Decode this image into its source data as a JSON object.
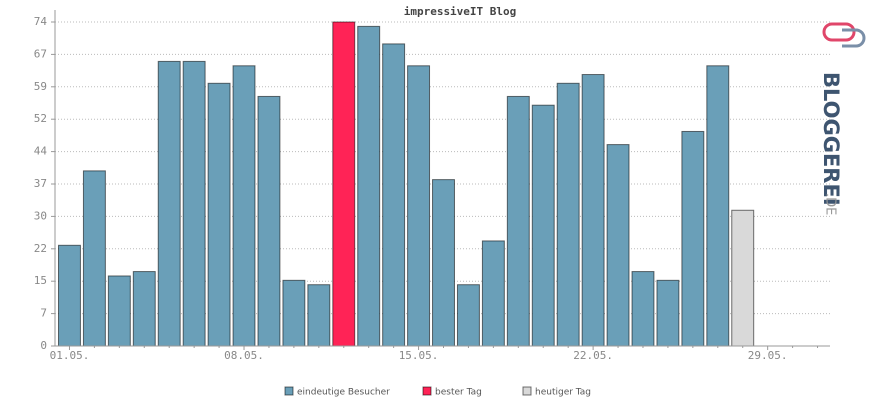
{
  "chart_data": {
    "type": "bar",
    "title": "impressiveIT Blog",
    "categories": [
      "01.05.",
      null,
      null,
      null,
      null,
      null,
      null,
      "08.05.",
      null,
      null,
      null,
      null,
      null,
      null,
      "15.05.",
      null,
      null,
      null,
      null,
      null,
      null,
      "22.05.",
      null,
      null,
      null,
      null,
      null,
      null,
      "29.05.",
      null,
      null
    ],
    "series": [
      {
        "name": "eindeutige Besucher",
        "color": "#6a9fb8",
        "values": [
          23,
          40,
          16,
          17,
          65,
          65,
          60,
          64,
          57,
          15,
          14,
          null,
          73,
          69,
          64,
          38,
          14,
          24,
          57,
          55,
          60,
          62,
          46,
          17,
          15,
          49,
          64,
          null,
          null,
          null,
          null
        ]
      },
      {
        "name": "bester Tag",
        "color": "#ff2356",
        "values": [
          null,
          null,
          null,
          null,
          null,
          null,
          null,
          null,
          null,
          null,
          null,
          74,
          null,
          null,
          null,
          null,
          null,
          null,
          null,
          null,
          null,
          null,
          null,
          null,
          null,
          null,
          null,
          null,
          null,
          null,
          null
        ]
      },
      {
        "name": "heutiger Tag",
        "color": "#d9d9d9",
        "values": [
          null,
          null,
          null,
          null,
          null,
          null,
          null,
          null,
          null,
          null,
          null,
          null,
          null,
          null,
          null,
          null,
          null,
          null,
          null,
          null,
          null,
          null,
          null,
          null,
          null,
          null,
          null,
          31,
          null,
          null,
          null
        ]
      }
    ],
    "ylim": [
      0,
      74
    ],
    "yticks": [
      0,
      {
        "value": 7.4,
        "label": "7"
      },
      {
        "value": 14.8,
        "label": "15"
      },
      {
        "value": 22.2,
        "label": "22"
      },
      {
        "value": 29.6,
        "label": "30"
      },
      {
        "value": 37,
        "label": "37"
      },
      {
        "value": 44.4,
        "label": "44"
      },
      {
        "value": 51.8,
        "label": "52"
      },
      {
        "value": 59.2,
        "label": "59"
      },
      {
        "value": 66.6,
        "label": "67"
      },
      74
    ],
    "grid": true,
    "logo": {
      "main": "BLOGGEREI",
      "suffix": ".DE"
    }
  }
}
